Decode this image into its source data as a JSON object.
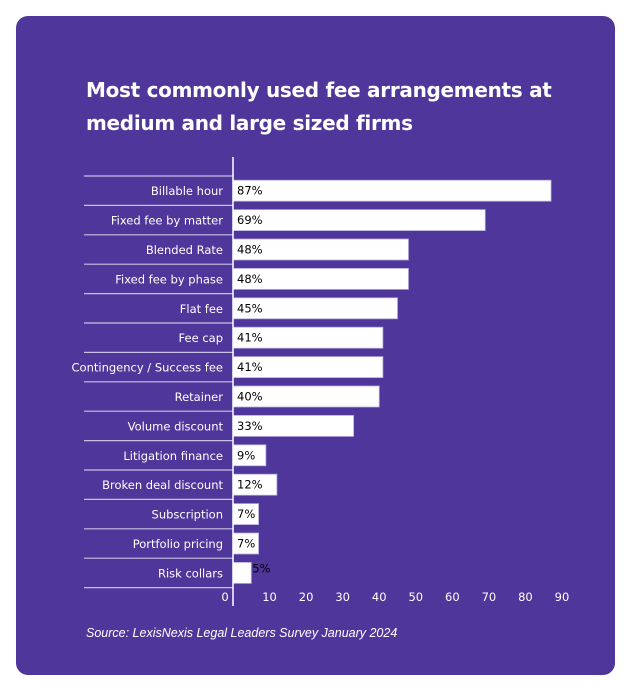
{
  "colors": {
    "background": "#4f369b",
    "bar": "#ffffff",
    "text": "#ffffff",
    "label_text": "#000000"
  },
  "chart_data": {
    "type": "bar",
    "orientation": "horizontal",
    "title": "Most commonly used fee arrangements at medium and large sized firms",
    "categories": [
      "Billable hour",
      "Fixed fee by matter",
      "Blended Rate",
      "Fixed fee by phase",
      "Flat fee",
      "Fee cap",
      "Contingency / Success fee",
      "Retainer",
      "Volume discount",
      "Litigation finance",
      "Broken deal discount",
      "Subscription",
      "Portfolio pricing",
      "Risk collars"
    ],
    "values": [
      87,
      69,
      48,
      48,
      45,
      41,
      41,
      40,
      33,
      9,
      12,
      7,
      7,
      5
    ],
    "data_labels": [
      "87%",
      "69%",
      "48%",
      "48%",
      "45%",
      "41%",
      "41%",
      "40%",
      "33%",
      "9%",
      "12%",
      "7%",
      "7%",
      "5%"
    ],
    "xlim": [
      0,
      90
    ],
    "xticks": [
      "0",
      "10",
      "20",
      "30",
      "40",
      "50",
      "60",
      "70",
      "80",
      "90"
    ],
    "xlabel": "",
    "ylabel": "",
    "grid": false,
    "legend": "none",
    "source": "Source: LexisNexis Legal Leaders Survey January 2024"
  }
}
